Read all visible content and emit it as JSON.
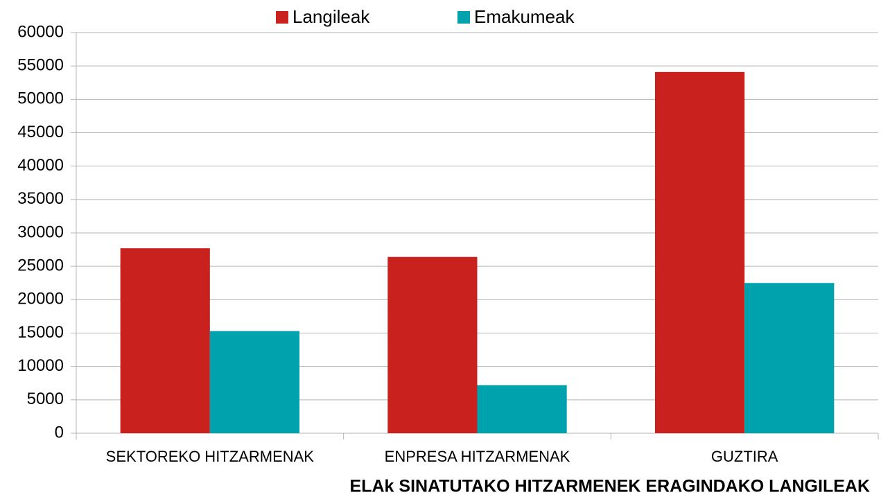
{
  "chart_data": {
    "type": "bar",
    "title": "ELAk SINATUTAKO HITZARMENEK ERAGINDAKO LANGILEAK",
    "categories": [
      "SEKTOREKO HITZARMENAK",
      "ENPRESA HITZARMENAK",
      "GUZTIRA"
    ],
    "series": [
      {
        "name": "Langileak",
        "color": "#c9211e",
        "values": [
          27700,
          26400,
          54100
        ]
      },
      {
        "name": "Emakumeak",
        "color": "#00a3ad",
        "values": [
          15300,
          7200,
          22500
        ]
      }
    ],
    "ylim": [
      0,
      60000
    ],
    "yticks": [
      0,
      5000,
      10000,
      15000,
      20000,
      25000,
      30000,
      35000,
      40000,
      45000,
      50000,
      55000,
      60000
    ],
    "grid": true,
    "legend": "top"
  }
}
